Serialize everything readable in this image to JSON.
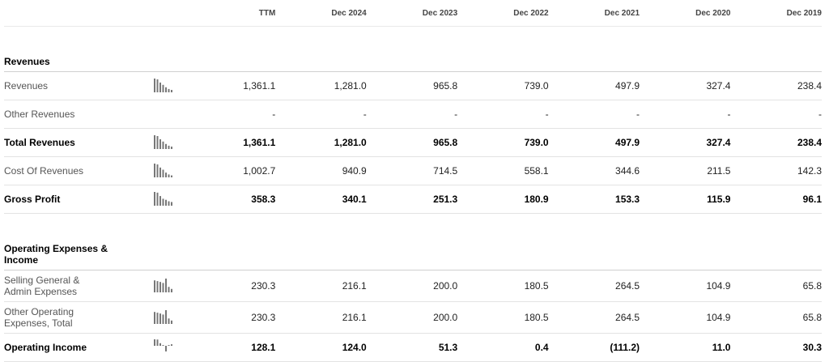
{
  "header": {
    "columns": [
      "TTM",
      "Dec 2024",
      "Dec 2023",
      "Dec 2022",
      "Dec 2021",
      "Dec 2020",
      "Dec 2019"
    ]
  },
  "sections": [
    {
      "title": "Revenues",
      "rows": [
        {
          "label": "Revenues",
          "bold": false,
          "values": [
            "1,361.1",
            "1,281.0",
            "965.8",
            "739.0",
            "497.9",
            "327.4",
            "238.4"
          ],
          "trend": [
            1361.1,
            1281.0,
            965.8,
            739.0,
            497.9,
            327.4,
            238.4
          ]
        },
        {
          "label": "Other Revenues",
          "bold": false,
          "values": [
            "-",
            "-",
            "-",
            "-",
            "-",
            "-",
            "-"
          ],
          "trend": []
        },
        {
          "label": "Total Revenues",
          "bold": true,
          "values": [
            "1,361.1",
            "1,281.0",
            "965.8",
            "739.0",
            "497.9",
            "327.4",
            "238.4"
          ],
          "trend": [
            1361.1,
            1281.0,
            965.8,
            739.0,
            497.9,
            327.4,
            238.4
          ]
        },
        {
          "label": "Cost Of Revenues",
          "bold": false,
          "values": [
            "1,002.7",
            "940.9",
            "714.5",
            "558.1",
            "344.6",
            "211.5",
            "142.3"
          ],
          "trend": [
            1002.7,
            940.9,
            714.5,
            558.1,
            344.6,
            211.5,
            142.3
          ]
        },
        {
          "label": "Gross Profit",
          "bold": true,
          "values": [
            "358.3",
            "340.1",
            "251.3",
            "180.9",
            "153.3",
            "115.9",
            "96.1"
          ],
          "trend": [
            358.3,
            340.1,
            251.3,
            180.9,
            153.3,
            115.9,
            96.1
          ]
        }
      ]
    },
    {
      "title": "Operating Expenses & Income",
      "rows": [
        {
          "label": "Selling General & Admin Expenses",
          "bold": false,
          "values": [
            "230.3",
            "216.1",
            "200.0",
            "180.5",
            "264.5",
            "104.9",
            "65.8"
          ],
          "trend": [
            230.3,
            216.1,
            200.0,
            180.5,
            264.5,
            104.9,
            65.8
          ]
        },
        {
          "label": "Other Operating Expenses, Total",
          "bold": false,
          "values": [
            "230.3",
            "216.1",
            "200.0",
            "180.5",
            "264.5",
            "104.9",
            "65.8"
          ],
          "trend": [
            230.3,
            216.1,
            200.0,
            180.5,
            264.5,
            104.9,
            65.8
          ]
        },
        {
          "label": "Operating Income",
          "bold": true,
          "values": [
            "128.1",
            "124.0",
            "51.3",
            "0.4",
            "(111.2)",
            "11.0",
            "30.3"
          ],
          "trend": [
            128.1,
            124.0,
            51.3,
            0.4,
            -111.2,
            11.0,
            30.3
          ]
        }
      ]
    }
  ],
  "colors": {
    "spark_bar": "#777777",
    "divider": "#e3e3e3"
  }
}
